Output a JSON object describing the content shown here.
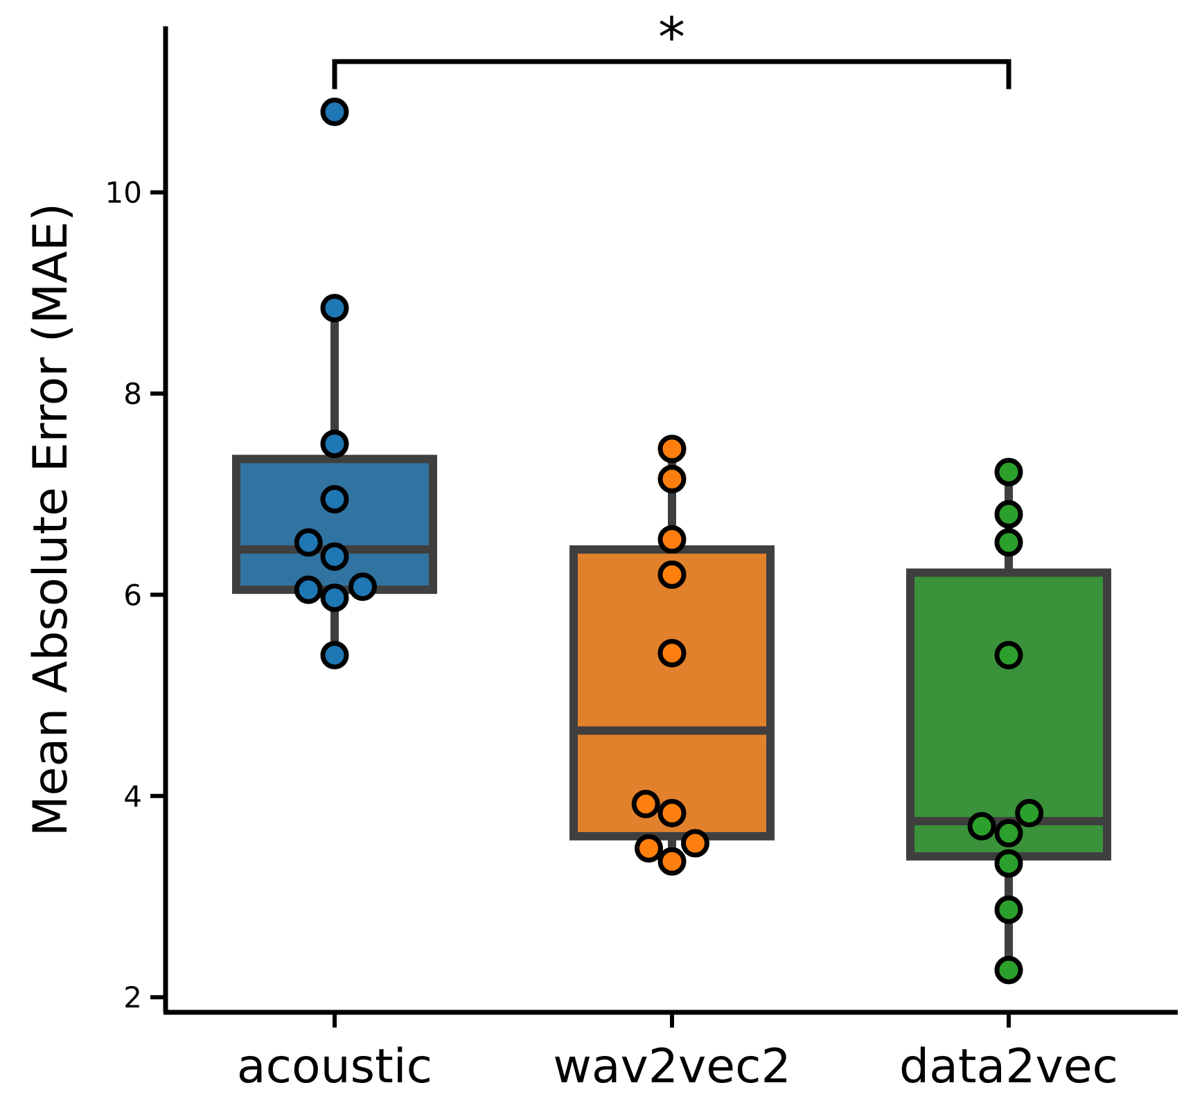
{
  "chart_data": {
    "type": "box",
    "title": "",
    "xlabel": "",
    "ylabel": "Mean Absolute Error (MAE)",
    "ylim": [
      1.85,
      11.65
    ],
    "yticks": [
      2,
      4,
      6,
      8,
      10
    ],
    "categories": [
      "acoustic",
      "wav2vec2",
      "data2vec"
    ],
    "series": [
      {
        "name": "acoustic",
        "color": "#3274a1",
        "point_color": "#1f77b4",
        "box": {
          "whislo": 5.4,
          "q1": 6.05,
          "median": 6.45,
          "q3": 7.35,
          "whishi": 8.85
        },
        "points": [
          10.8,
          8.85,
          7.5,
          6.95,
          6.52,
          6.38,
          6.08,
          6.05,
          5.97,
          5.4
        ],
        "jitter": [
          0,
          0,
          0,
          0,
          -0.7,
          0,
          0.75,
          -0.7,
          0,
          0
        ]
      },
      {
        "name": "wav2vec2",
        "color": "#e1812c",
        "point_color": "#ff7f0e",
        "box": {
          "whislo": 3.35,
          "q1": 3.6,
          "median": 4.65,
          "q3": 6.45,
          "whishi": 7.45
        },
        "points": [
          7.45,
          7.15,
          6.55,
          6.2,
          5.42,
          3.92,
          3.83,
          3.53,
          3.48,
          3.35
        ],
        "jitter": [
          0,
          0,
          0,
          0,
          0,
          -0.7,
          0,
          0.62,
          -0.62,
          0
        ]
      },
      {
        "name": "data2vec",
        "color": "#3a923a",
        "point_color": "#2ca02c",
        "box": {
          "whislo": 2.27,
          "q1": 3.4,
          "median": 3.75,
          "q3": 6.22,
          "whishi": 7.22
        },
        "points": [
          7.22,
          6.8,
          6.52,
          5.4,
          3.83,
          3.7,
          3.63,
          3.33,
          2.87,
          2.27
        ],
        "jitter": [
          0,
          0,
          0,
          0,
          0.55,
          -0.72,
          0,
          0,
          0,
          0
        ]
      }
    ],
    "significance": {
      "from": "acoustic",
      "to": "data2vec",
      "label": "*",
      "y": 11.3,
      "tip": 11.05
    }
  }
}
